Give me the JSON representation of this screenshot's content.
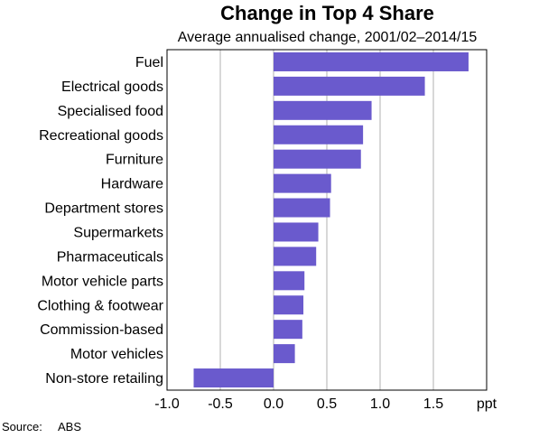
{
  "chart_data": {
    "type": "bar",
    "orientation": "horizontal",
    "title": "Change in Top 4 Share",
    "subtitle": "Average annualised change, 2001/02–2014/15",
    "xlabel": "ppt",
    "ylabel": "",
    "xlim": [
      -1.0,
      2.0
    ],
    "xticks": [
      "-1.0",
      "-0.5",
      "0.0",
      "0.5",
      "1.0",
      "1.5"
    ],
    "xtick_values": [
      -1.0,
      -0.5,
      0.0,
      0.5,
      1.0,
      1.5
    ],
    "unit_label": "ppt",
    "grid": true,
    "legend": "none",
    "bar_color": "#6a5acd",
    "categories": [
      "Fuel",
      "Electrical goods",
      "Specialised food",
      "Recreational goods",
      "Furniture",
      "Hardware",
      "Department stores",
      "Supermarkets",
      "Pharmaceuticals",
      "Motor vehicle parts",
      "Clothing & footwear",
      "Commission-based",
      "Motor vehicles",
      "Non-store retailing"
    ],
    "values": [
      1.83,
      1.42,
      0.92,
      0.84,
      0.82,
      0.54,
      0.53,
      0.42,
      0.4,
      0.29,
      0.28,
      0.27,
      0.2,
      -0.75
    ]
  },
  "source": {
    "label": "Source:",
    "value": "ABS"
  }
}
